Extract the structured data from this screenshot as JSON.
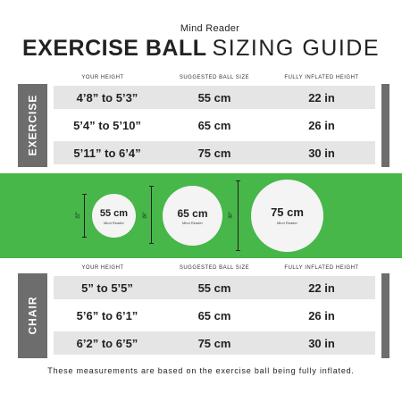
{
  "brand": "Mind Reader",
  "title": {
    "bold": "EXERCISE BALL",
    "light": "SIZING GUIDE"
  },
  "headers": {
    "height": "YOUR HEIGHT",
    "ball": "SUGGESTED BALL SIZE",
    "inflated": "FULLY INFLATED HEIGHT"
  },
  "exercise": {
    "label": "EXERCISE",
    "rows": [
      {
        "height": "4’8” to 5’3”",
        "ball": "55 cm",
        "inflated": "22 in"
      },
      {
        "height": "5’4” to 5’10”",
        "ball": "65 cm",
        "inflated": "26 in"
      },
      {
        "height": "5’11” to 6’4”",
        "ball": "75 cm",
        "inflated": "30 in"
      }
    ]
  },
  "balls": [
    {
      "size": "55 cm",
      "brand": "Mind Reader",
      "dim": "22\""
    },
    {
      "size": "65 cm",
      "brand": "Mind Reader",
      "dim": "26\""
    },
    {
      "size": "75 cm",
      "brand": "Mind Reader",
      "dim": "30\""
    }
  ],
  "chair": {
    "label": "CHAIR",
    "rows": [
      {
        "height": "5” to 5’5”",
        "ball": "55 cm",
        "inflated": "22 in"
      },
      {
        "height": "5’6” to 6’1”",
        "ball": "65 cm",
        "inflated": "26 in"
      },
      {
        "height": "6’2” to 6’5”",
        "ball": "75 cm",
        "inflated": "30 in"
      }
    ]
  },
  "footnote": "These measurements are based on the exercise ball being fully inflated.",
  "colors": {
    "green": "#46b748",
    "sidebar": "#6d6d6d",
    "row": "#e5e5e5"
  }
}
